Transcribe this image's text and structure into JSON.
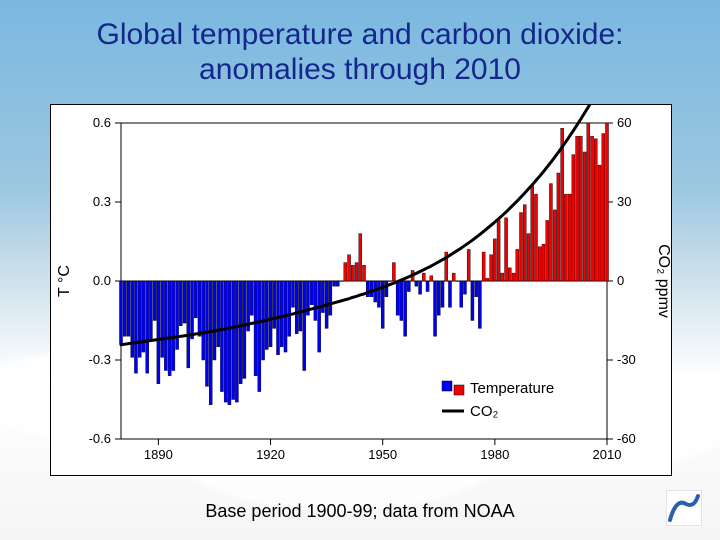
{
  "title_line1": "Global temperature and carbon dioxide:",
  "title_line2": "anomalies through 2010",
  "caption": "Base period 1900-99; data from NOAA",
  "chart": {
    "type": "bar+line",
    "background_color": "#ffffff",
    "axis_color": "#000000",
    "axis_line_width": 1,
    "tick_font_size": 13,
    "tick_font_color": "#000000",
    "label_font_size": 16,
    "y_left_label": "T  °C",
    "y_right_label": "CO₂  ppmv",
    "y_left": {
      "min": -0.6,
      "max": 0.6,
      "ticks": [
        -0.6,
        -0.3,
        0.0,
        0.3,
        0.6
      ]
    },
    "y_right": {
      "min": -60,
      "max": 60,
      "ticks": [
        -60,
        -30,
        0,
        30,
        60
      ]
    },
    "x": {
      "min": 1880,
      "max": 2010,
      "ticks": [
        1890,
        1920,
        1950,
        1980,
        2010
      ]
    },
    "legend": {
      "items": [
        {
          "label": "Temperature",
          "type": "bar-pair",
          "colors": [
            "#0000f0",
            "#f00000"
          ]
        },
        {
          "label": "CO₂",
          "type": "line",
          "color": "#000000",
          "line_width": 3
        }
      ],
      "font_size": 15,
      "position": "lower-right-inside"
    },
    "bar_positive_color": "#f00000",
    "bar_negative_color": "#0000f0",
    "bar_outline_color": "#000000",
    "bar_outline_width": 0.4,
    "bars_year_start": 1880,
    "bars_values": [
      -0.24,
      -0.21,
      -0.21,
      -0.29,
      -0.35,
      -0.29,
      -0.27,
      -0.35,
      -0.22,
      -0.15,
      -0.39,
      -0.29,
      -0.34,
      -0.36,
      -0.34,
      -0.26,
      -0.17,
      -0.16,
      -0.33,
      -0.22,
      -0.14,
      -0.21,
      -0.3,
      -0.4,
      -0.47,
      -0.3,
      -0.25,
      -0.42,
      -0.46,
      -0.47,
      -0.45,
      -0.46,
      -0.39,
      -0.37,
      -0.19,
      -0.13,
      -0.36,
      -0.42,
      -0.3,
      -0.26,
      -0.25,
      -0.18,
      -0.28,
      -0.25,
      -0.27,
      -0.21,
      -0.1,
      -0.2,
      -0.19,
      -0.34,
      -0.13,
      -0.09,
      -0.15,
      -0.27,
      -0.12,
      -0.18,
      -0.13,
      -0.02,
      -0.02,
      0.0,
      0.07,
      0.1,
      0.06,
      0.07,
      0.18,
      0.06,
      -0.06,
      -0.06,
      -0.08,
      -0.1,
      -0.18,
      -0.06,
      0.0,
      0.07,
      -0.13,
      -0.15,
      -0.21,
      -0.04,
      0.04,
      -0.02,
      -0.05,
      0.03,
      -0.04,
      0.02,
      -0.21,
      -0.13,
      -0.1,
      0.11,
      -0.1,
      0.03,
      0.0,
      -0.1,
      -0.05,
      0.12,
      -0.15,
      -0.06,
      -0.18,
      0.11,
      0.01,
      0.1,
      0.16,
      0.23,
      0.03,
      0.24,
      0.05,
      0.03,
      0.12,
      0.26,
      0.29,
      0.18,
      0.36,
      0.33,
      0.13,
      0.14,
      0.23,
      0.37,
      0.27,
      0.41,
      0.58,
      0.33,
      0.33,
      0.48,
      0.55,
      0.55,
      0.49,
      0.6,
      0.55,
      0.54,
      0.44,
      0.56,
      0.6
    ],
    "co2_line_color": "#000000",
    "co2_line_width": 3,
    "co2_year_start": 1880,
    "co2_values": [
      -24.2,
      -24.0,
      -23.8,
      -23.6,
      -23.4,
      -23.2,
      -23.0,
      -22.8,
      -22.6,
      -22.4,
      -22.2,
      -22.0,
      -21.8,
      -21.6,
      -21.4,
      -21.2,
      -21.0,
      -20.8,
      -20.6,
      -20.4,
      -20.1,
      -19.9,
      -19.7,
      -19.4,
      -19.2,
      -19.0,
      -18.7,
      -18.4,
      -18.2,
      -17.9,
      -17.6,
      -17.3,
      -17.0,
      -16.7,
      -16.4,
      -16.1,
      -15.8,
      -15.5,
      -15.2,
      -14.9,
      -14.5,
      -14.2,
      -13.9,
      -13.5,
      -13.2,
      -12.8,
      -12.5,
      -12.1,
      -11.8,
      -11.4,
      -11.0,
      -10.6,
      -10.3,
      -9.9,
      -9.5,
      -9.1,
      -8.7,
      -8.3,
      -7.9,
      -7.5,
      -7.1,
      -6.7,
      -6.2,
      -5.8,
      -5.3,
      -4.9,
      -4.4,
      -3.9,
      -3.4,
      -2.9,
      -2.4,
      -1.9,
      -1.3,
      -0.8,
      -0.2,
      0.4,
      1.0,
      1.6,
      2.3,
      2.9,
      3.6,
      4.3,
      5.0,
      5.7,
      6.5,
      7.3,
      8.1,
      8.9,
      9.8,
      10.7,
      11.6,
      12.5,
      13.5,
      14.5,
      15.5,
      16.6,
      17.7,
      18.8,
      20.0,
      21.2,
      22.4,
      23.6,
      24.9,
      26.2,
      27.6,
      29.0,
      30.4,
      31.9,
      33.4,
      35.0,
      36.5,
      38.2,
      39.8,
      41.5,
      43.3,
      45.1,
      47.0,
      48.9,
      50.9,
      52.9,
      55.0,
      57.1,
      59.3,
      61.5,
      63.8,
      66.1,
      68.5,
      70.9,
      73.4,
      76.0,
      78.6
    ]
  }
}
